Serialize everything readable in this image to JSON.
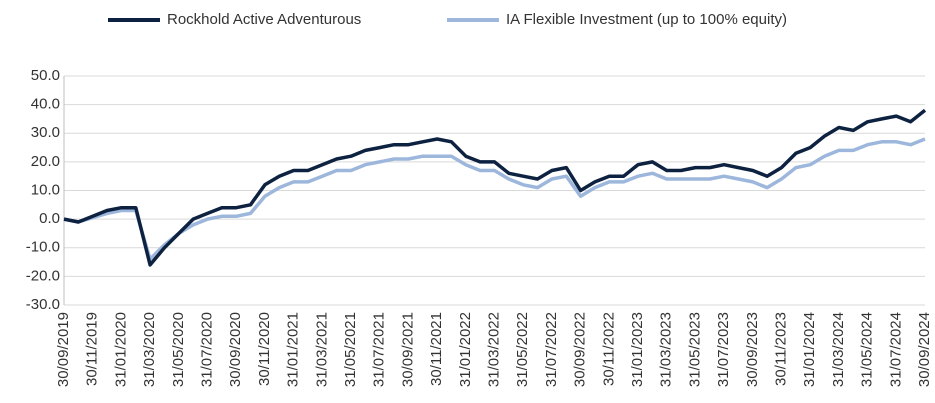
{
  "chart_data": {
    "type": "line",
    "categories": [
      "30/09/2019",
      null,
      "30/11/2019",
      null,
      "31/01/2020",
      null,
      "31/03/2020",
      null,
      "31/05/2020",
      null,
      "31/07/2020",
      null,
      "30/09/2020",
      null,
      "30/11/2020",
      null,
      "31/01/2021",
      null,
      "31/03/2021",
      null,
      "31/05/2021",
      null,
      "31/07/2021",
      null,
      "30/09/2021",
      null,
      "30/11/2021",
      null,
      "31/01/2022",
      null,
      "31/03/2022",
      null,
      "31/05/2022",
      null,
      "31/07/2022",
      null,
      "30/09/2022",
      null,
      "30/11/2022",
      null,
      "31/01/2023",
      null,
      "31/03/2023",
      null,
      "31/05/2023",
      null,
      "31/07/2023",
      null,
      "30/09/2023",
      null,
      "30/11/2023",
      null,
      "31/01/2024",
      null,
      "31/03/2024",
      null,
      "31/05/2024",
      null,
      "31/07/2024",
      null,
      "30/09/2024"
    ],
    "series": [
      {
        "name": "Rockhold Active Adventurous",
        "color": "#0d2240",
        "values": [
          0,
          -1,
          1,
          3,
          4,
          4,
          -16,
          -10,
          -5,
          0,
          2,
          4,
          4,
          5,
          12,
          15,
          17,
          17,
          19,
          21,
          22,
          24,
          25,
          26,
          26,
          27,
          28,
          27,
          22,
          20,
          20,
          16,
          15,
          14,
          17,
          18,
          10,
          13,
          15,
          15,
          19,
          20,
          17,
          17,
          18,
          18,
          19,
          18,
          17,
          15,
          18,
          23,
          25,
          29,
          32,
          31,
          34,
          35,
          36,
          34,
          38
        ]
      },
      {
        "name": "IA Flexible Investment (up to 100% equity)",
        "color": "#9db7dc",
        "values": [
          0,
          -1,
          0.5,
          2,
          3,
          3,
          -14,
          -9,
          -5,
          -2,
          0,
          1,
          1,
          2,
          8,
          11,
          13,
          13,
          15,
          17,
          17,
          19,
          20,
          21,
          21,
          22,
          22,
          22,
          19,
          17,
          17,
          14,
          12,
          11,
          14,
          15,
          8,
          11,
          13,
          13,
          15,
          16,
          14,
          14,
          14,
          14,
          15,
          14,
          13,
          11,
          14,
          18,
          19,
          22,
          24,
          24,
          26,
          27,
          27,
          26,
          28
        ]
      }
    ],
    "ylim": [
      -30,
      50
    ],
    "yticks": [
      {
        "value": -30,
        "label": "-30.0"
      },
      {
        "value": -20,
        "label": "-20.0"
      },
      {
        "value": -10,
        "label": "-10.0"
      },
      {
        "value": 0,
        "label": "0.0"
      },
      {
        "value": 10,
        "label": "10.0"
      },
      {
        "value": 20,
        "label": "20.0"
      },
      {
        "value": 30,
        "label": "30.0"
      },
      {
        "value": 40,
        "label": "40.0"
      },
      {
        "value": 50,
        "label": "50.0"
      }
    ],
    "grid": true,
    "legend": "top"
  }
}
